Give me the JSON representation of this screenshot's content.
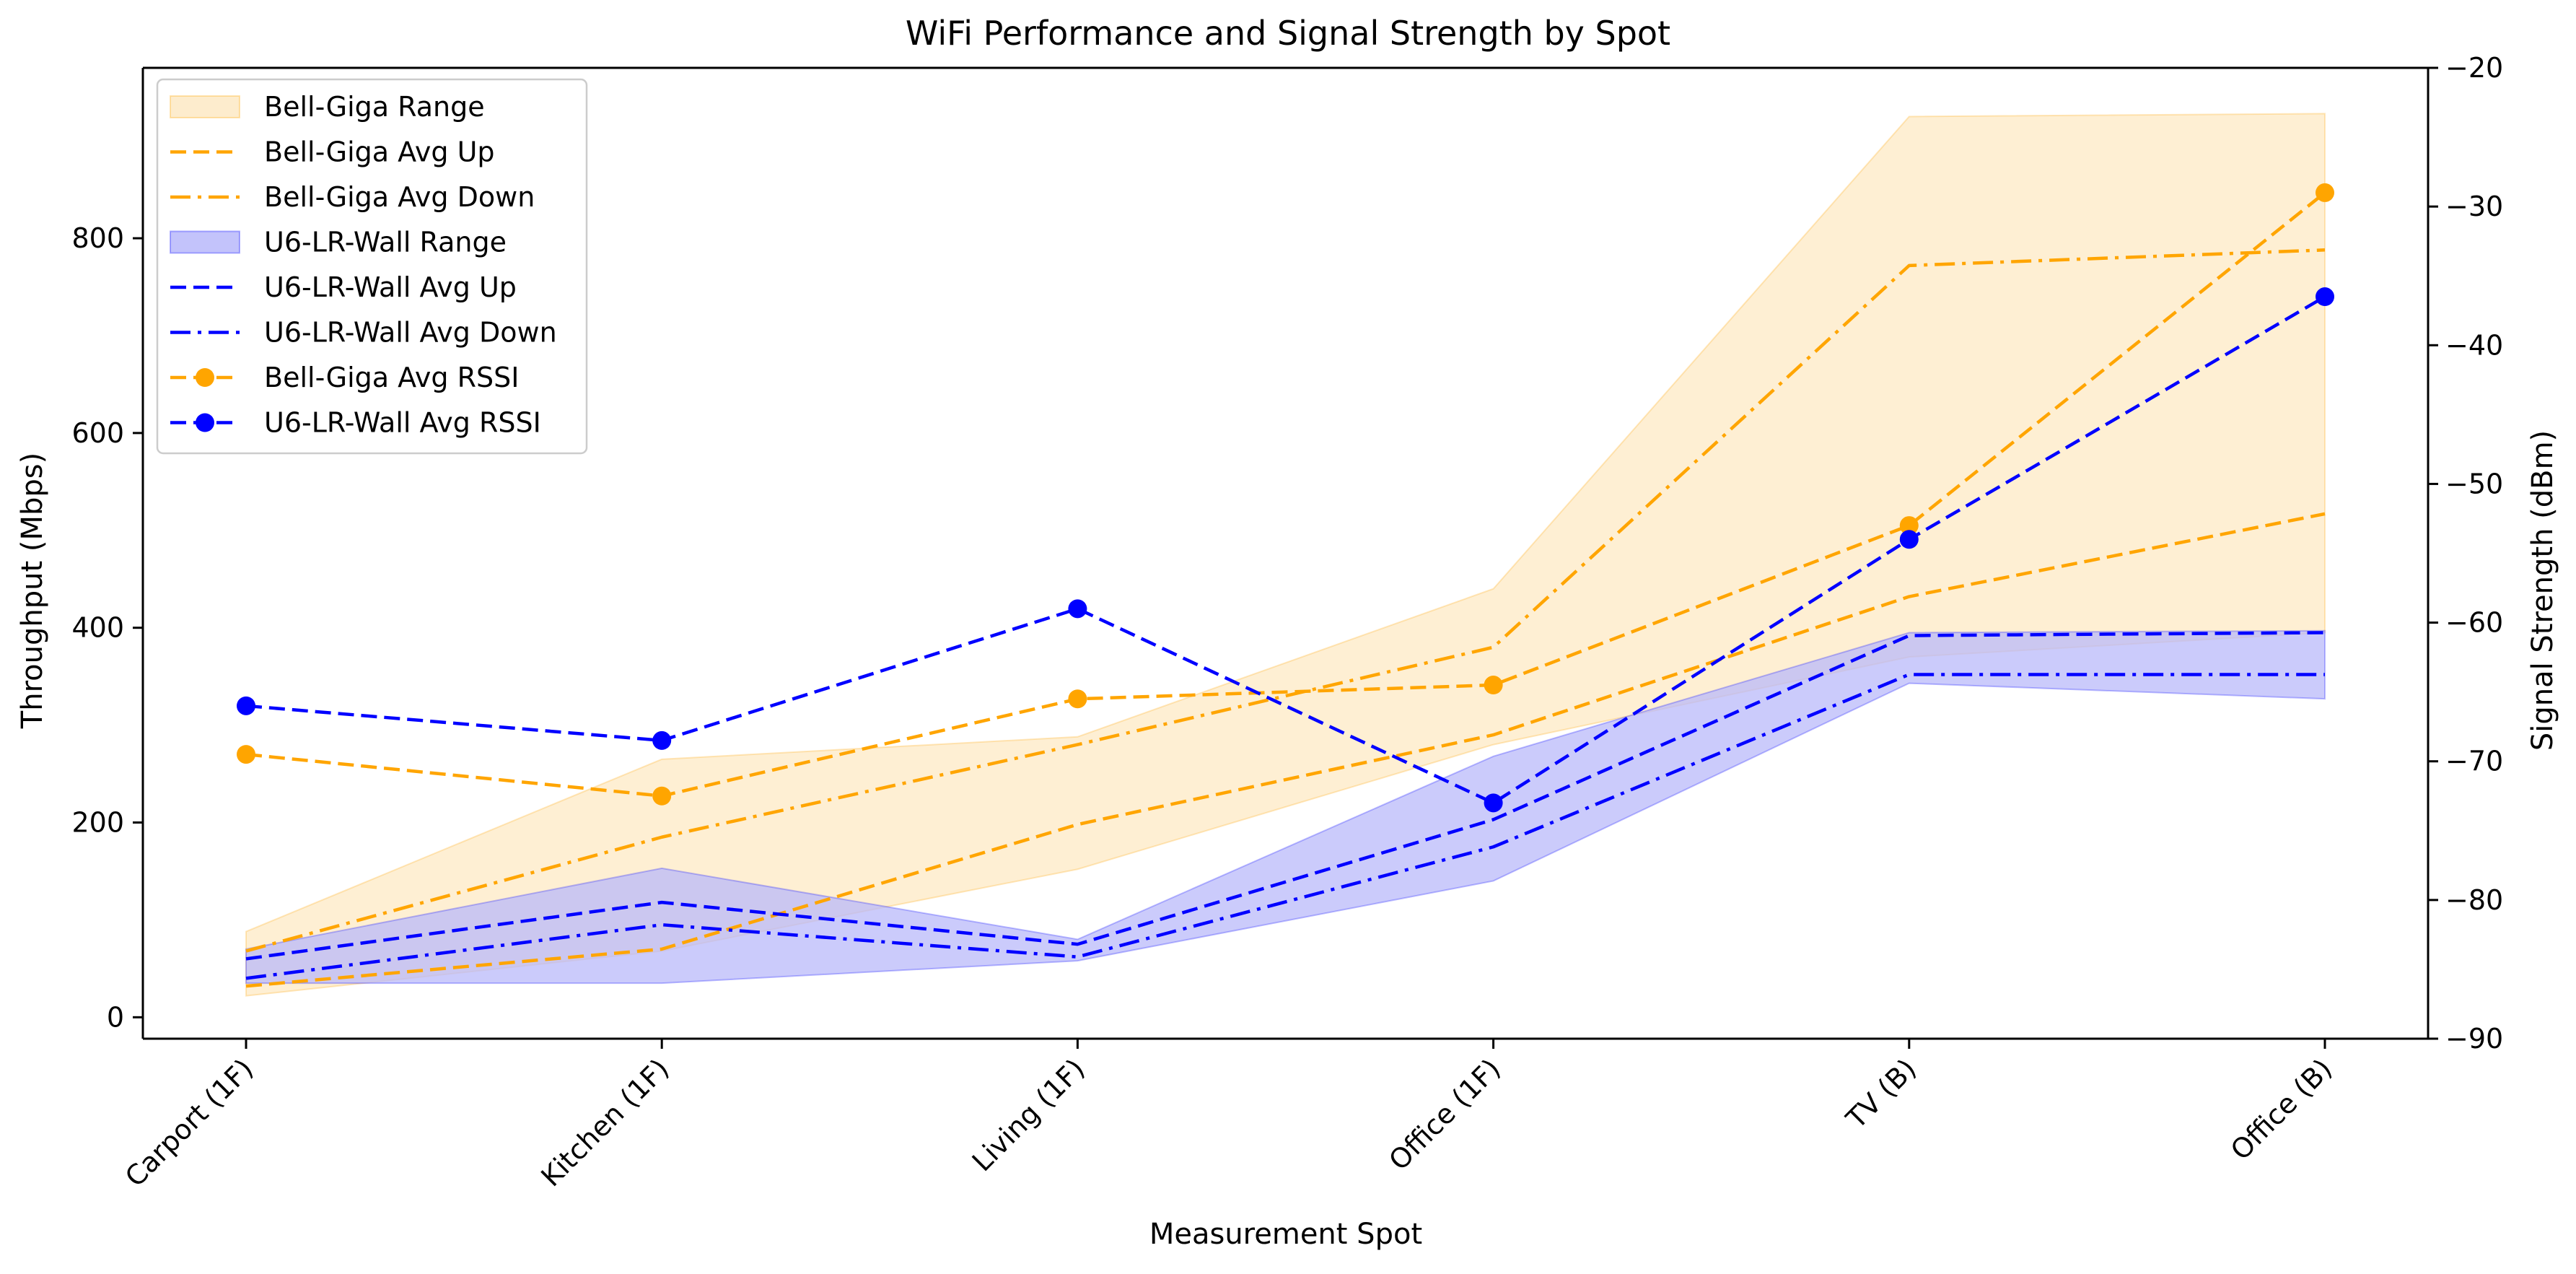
{
  "chart_data": {
    "type": "line",
    "title": "WiFi Performance and Signal Strength by Spot",
    "xlabel": "Measurement Spot",
    "ylabel": "Throughput (Mbps)",
    "y2label": "Signal Strength (dBm)",
    "categories": [
      "Carport (1F)",
      "Kitchen (1F)",
      "Living (1F)",
      "Office (1F)",
      "TV (B)",
      "Office (B)"
    ],
    "ylim": [
      -22,
      975
    ],
    "y_ticks": [
      0,
      200,
      400,
      600,
      800
    ],
    "y2lim": [
      -90,
      -20
    ],
    "y2_ticks": [
      -90,
      -80,
      -70,
      -60,
      -50,
      -40,
      -30,
      -20
    ],
    "legend_position": "upper-left",
    "colors": {
      "bell": "#ffa500",
      "u6": "#0000ff",
      "bell_fill": "#fde9c4",
      "u6_fill": "#b9b9fa"
    },
    "series": [
      {
        "name": "Bell-Giga Range",
        "kind": "band",
        "axis": "left",
        "color": "#ffa500",
        "lower": [
          22,
          68,
          152,
          280,
          370,
          395
        ],
        "upper": [
          88,
          265,
          288,
          440,
          925,
          928
        ]
      },
      {
        "name": "Bell-Giga Avg Up",
        "kind": "line",
        "style": "dashed",
        "axis": "left",
        "color": "#ffa500",
        "values": [
          32,
          70,
          198,
          290,
          432,
          517
        ]
      },
      {
        "name": "Bell-Giga Avg Down",
        "kind": "line",
        "style": "dashdot",
        "axis": "left",
        "color": "#ffa500",
        "values": [
          68,
          185,
          280,
          380,
          772,
          788
        ]
      },
      {
        "name": "U6-LR-Wall Range",
        "kind": "band",
        "axis": "left",
        "color": "#0000ff",
        "lower": [
          35,
          35,
          58,
          140,
          343,
          327
        ],
        "upper": [
          70,
          153,
          80,
          268,
          395,
          397
        ]
      },
      {
        "name": "U6-LR-Wall Avg Up",
        "kind": "line",
        "style": "dashed",
        "axis": "left",
        "color": "#0000ff",
        "values": [
          60,
          118,
          75,
          203,
          392,
          395
        ]
      },
      {
        "name": "U6-LR-Wall Avg Down",
        "kind": "line",
        "style": "dashdot",
        "axis": "left",
        "color": "#0000ff",
        "values": [
          40,
          95,
          62,
          175,
          352,
          352
        ]
      },
      {
        "name": "Bell-Giga Avg RSSI",
        "kind": "line",
        "style": "dashed",
        "marker": "circle",
        "axis": "right",
        "color": "#ffa500",
        "values": [
          -69.5,
          -72.5,
          -65.5,
          -64.5,
          -53,
          -29
        ]
      },
      {
        "name": "U6-LR-Wall Avg RSSI",
        "kind": "line",
        "style": "dashed",
        "marker": "circle",
        "axis": "right",
        "color": "#0000ff",
        "values": [
          -66,
          -68.5,
          -59,
          -73,
          -54,
          -36.5
        ]
      }
    ]
  }
}
